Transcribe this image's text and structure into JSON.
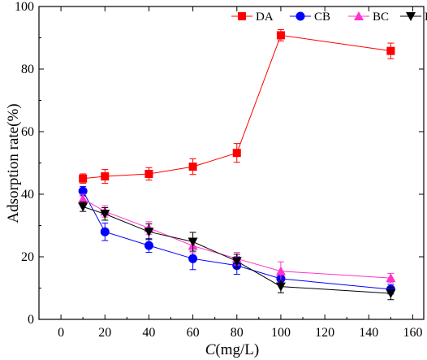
{
  "chart_data": {
    "type": "line",
    "xlabel_italic": "C",
    "xlabel_rest": "(mg/L)",
    "ylabel": "Adsorption rate(%)",
    "xlim": [
      -10,
      165
    ],
    "ylim": [
      0,
      100
    ],
    "xticks": [
      0,
      20,
      40,
      60,
      80,
      100,
      120,
      140,
      160
    ],
    "yticks": [
      0,
      20,
      40,
      60,
      80,
      100
    ],
    "legend_position": "top-right",
    "series": [
      {
        "name": "DA",
        "color": "#ff0000",
        "marker": "square",
        "x": [
          10,
          20,
          40,
          60,
          80,
          100,
          150
        ],
        "y": [
          45,
          45.7,
          46.5,
          48.8,
          53.2,
          90.8,
          85.8
        ],
        "err": [
          1.5,
          2.2,
          2.0,
          2.5,
          3.0,
          1.8,
          2.5
        ]
      },
      {
        "name": "CB",
        "color": "#0000ff",
        "marker": "circle",
        "x": [
          10,
          20,
          40,
          60,
          80,
          100,
          150
        ],
        "y": [
          41,
          28,
          23.6,
          19.4,
          17.2,
          13,
          9.6
        ],
        "err": [
          1.5,
          2.8,
          2.2,
          3.5,
          2.8,
          2.0,
          1.5
        ]
      },
      {
        "name": "BC",
        "color": "#ff33cc",
        "marker": "triangle-up",
        "x": [
          10,
          20,
          40,
          60,
          80,
          100,
          150
        ],
        "y": [
          38.5,
          34.5,
          29.2,
          23.5,
          19.4,
          15.4,
          13.2
        ],
        "err": [
          1.5,
          1.8,
          2.0,
          2.2,
          2.0,
          3.0,
          1.5
        ]
      },
      {
        "name": "RHB",
        "color": "#000000",
        "marker": "triangle-down",
        "x": [
          10,
          20,
          40,
          60,
          80,
          100,
          150
        ],
        "y": [
          36,
          33.7,
          28,
          24.8,
          18.6,
          10.5,
          8.3
        ],
        "err": [
          1.5,
          2.0,
          2.5,
          3.0,
          2.2,
          2.0,
          2.0
        ]
      }
    ]
  }
}
